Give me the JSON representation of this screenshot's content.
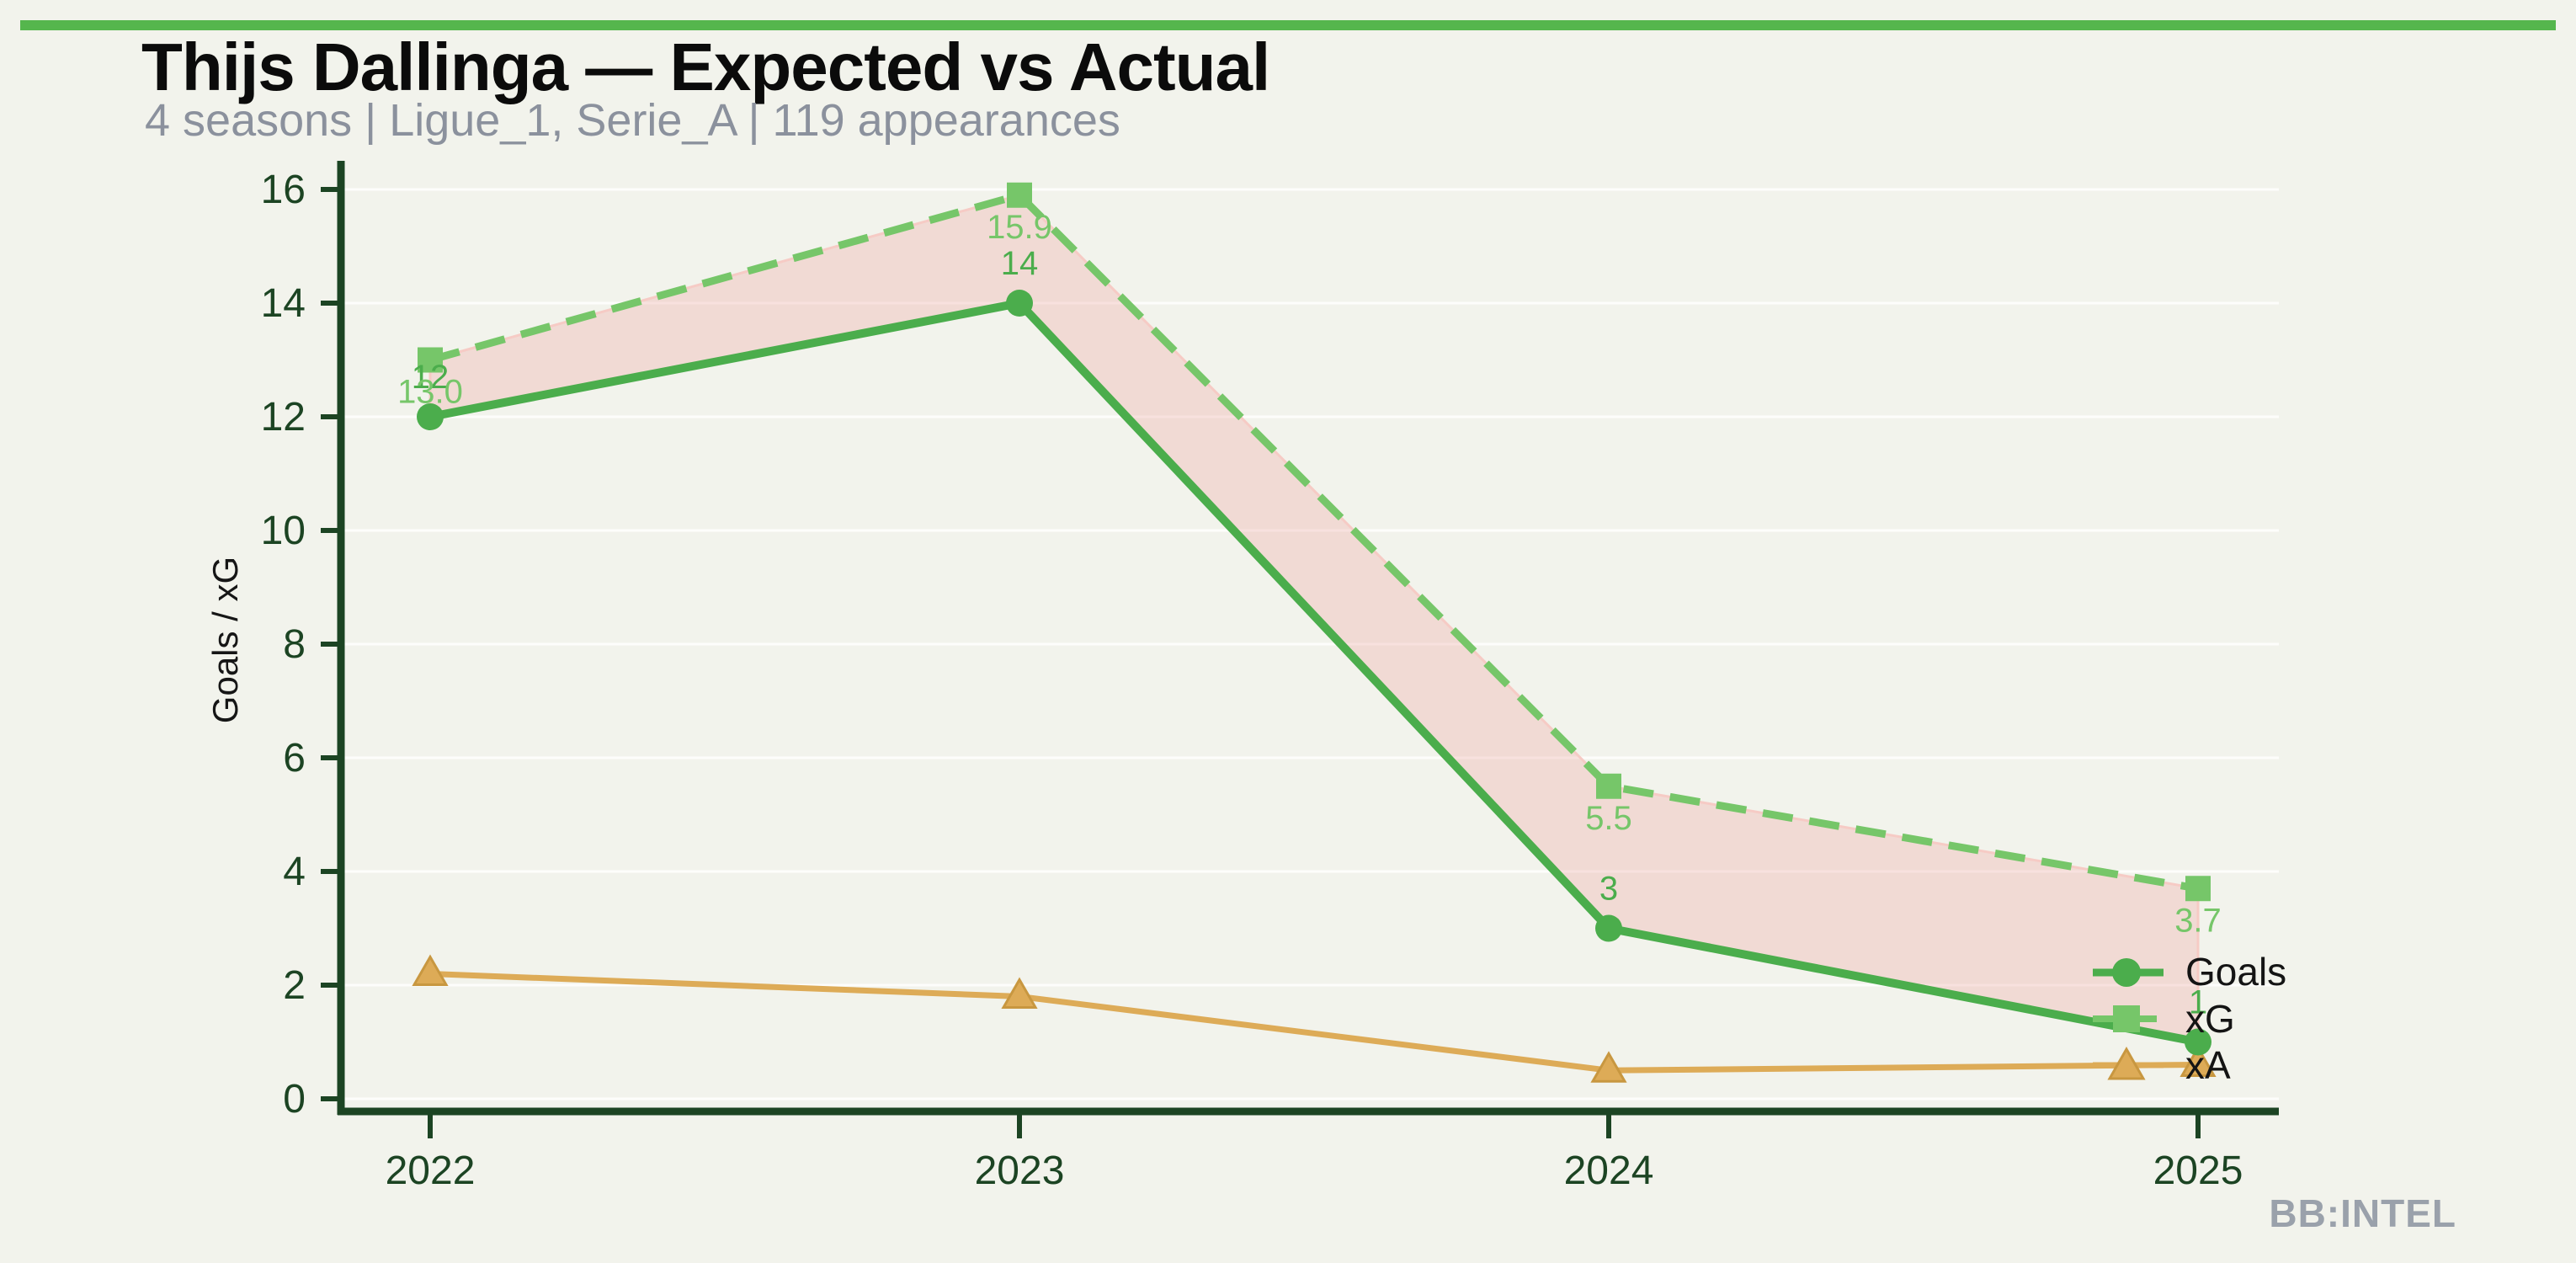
{
  "header": {
    "title": "Thijs Dallinga — Expected vs Actual",
    "subtitle": "4 seasons | Ligue_1, Serie_A | 119 appearances"
  },
  "watermark": "BB:INTEL",
  "colors": {
    "background": "#f2f3ec",
    "accent_bar": "#55b64d",
    "title": "#0b0b0b",
    "subtitle": "#8b919d",
    "axis": "#1c4423",
    "goals": "#4bad4c",
    "xg": "#76c669",
    "xa": "#ddab57",
    "xa_marker_edge": "#c89740",
    "gap_fill": "rgba(238,162,155,0.30)",
    "gap_fill_edge": "#f6cbc5",
    "gridline": "rgba(255,255,255,0.8)",
    "legend_text": "#141414",
    "watermark_color": "#9aa1ab"
  },
  "chart_data": {
    "type": "line",
    "title": "Thijs Dallinga — Expected vs Actual",
    "categories": [
      "2022",
      "2023",
      "2024",
      "2025"
    ],
    "series": [
      {
        "name": "Goals",
        "marker": "circle",
        "line_style": "solid",
        "color_key": "goals",
        "values": [
          12,
          14,
          3,
          1
        ],
        "point_labels": [
          "12",
          "14",
          "3",
          "1"
        ]
      },
      {
        "name": "xG",
        "marker": "square",
        "line_style": "dashed",
        "color_key": "xg",
        "values": [
          13.0,
          15.9,
          5.5,
          3.7
        ],
        "point_labels": [
          "13.0",
          "15.9",
          "5.5",
          "3.7"
        ]
      },
      {
        "name": "xA",
        "marker": "triangle",
        "line_style": "solid",
        "color_key": "xa",
        "values": [
          2.2,
          1.8,
          0.5,
          0.6
        ],
        "point_labels": []
      }
    ],
    "xlabel": "",
    "ylabel": "Goals / xG",
    "ylim": [
      0,
      16.5
    ],
    "yticks": [
      0,
      2,
      4,
      6,
      8,
      10,
      12,
      14,
      16
    ],
    "grid": "horizontal-faint",
    "legend_position": "inside-right",
    "fill_between": {
      "upper": "xG",
      "lower": "Goals",
      "meaning": "xG minus Goals gap"
    }
  }
}
